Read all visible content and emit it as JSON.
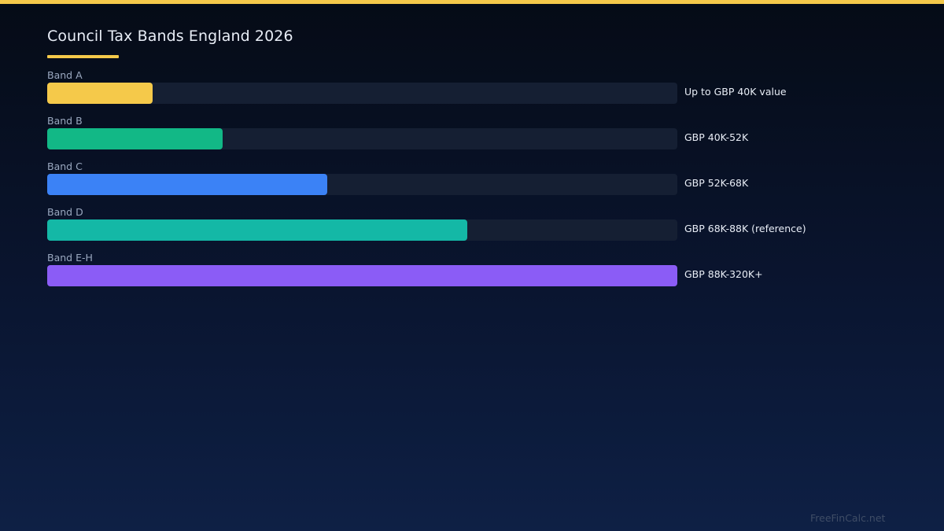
{
  "title": "Council Tax Bands England 2026",
  "watermark": "FreeFinCalc.net",
  "colors": {
    "accent": "#f5c94a",
    "track": "#151f33"
  },
  "chart_data": {
    "type": "bar",
    "orientation": "horizontal",
    "title": "Council Tax Bands England 2026",
    "xlabel": "",
    "ylabel": "",
    "grid": false,
    "legend": "none",
    "xlim": [
      0,
      1
    ],
    "categories": [
      "Band A",
      "Band B",
      "Band C",
      "Band D",
      "Band E-H"
    ],
    "values": [
      0.167,
      0.278,
      0.444,
      0.667,
      1.0
    ],
    "value_labels": [
      "Up to GBP 40K value",
      "GBP 40K-52K",
      "GBP 52K-68K",
      "GBP 68K-88K (reference)",
      "GBP 88K-320K+"
    ],
    "bar_colors": [
      "#f5c94a",
      "#12b886",
      "#3b82f6",
      "#14b8a6",
      "#8b5cf6"
    ]
  }
}
